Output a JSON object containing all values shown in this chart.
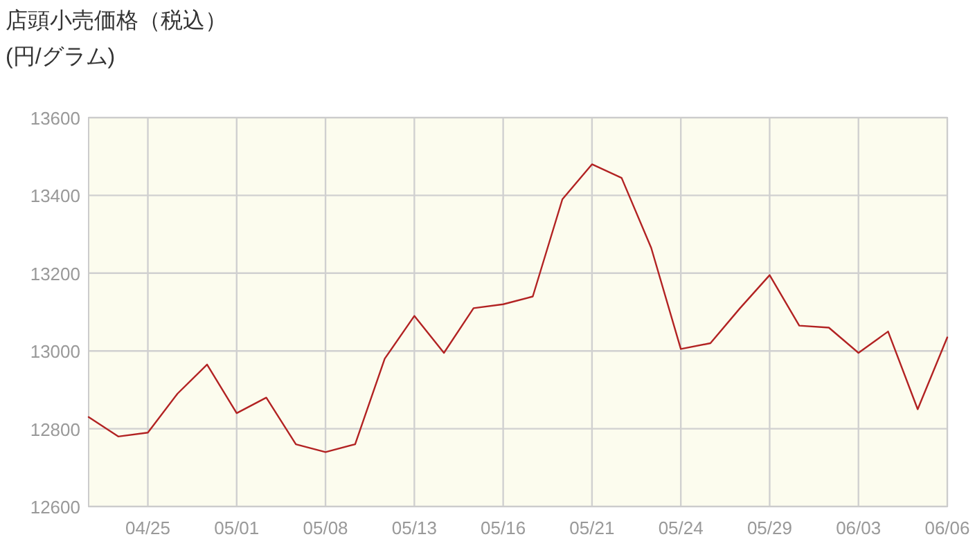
{
  "chart_data": {
    "type": "line",
    "title": "店頭小売価格（税込）",
    "subtitle": "(円/グラム)",
    "categories": [
      null,
      null,
      "04/25",
      null,
      null,
      "05/01",
      null,
      null,
      "05/08",
      null,
      null,
      "05/13",
      null,
      null,
      "05/16",
      null,
      null,
      "05/21",
      null,
      null,
      "05/24",
      null,
      null,
      "05/29",
      null,
      null,
      "06/03",
      null,
      null,
      "06/06"
    ],
    "series": [
      {
        "color": "#b22222",
        "values": [
          12830,
          12780,
          12790,
          12890,
          12965,
          12840,
          12880,
          12760,
          12740,
          12760,
          12980,
          13090,
          12995,
          13110,
          13120,
          13140,
          13390,
          13480,
          13445,
          13265,
          13005,
          13020,
          13110,
          13195,
          13065,
          13060,
          12995,
          13050,
          12850,
          13035
        ]
      }
    ],
    "ylim": [
      12600,
      13600
    ],
    "yticks": [
      12600,
      12800,
      13000,
      13200,
      13400,
      13600
    ],
    "grid": true
  }
}
